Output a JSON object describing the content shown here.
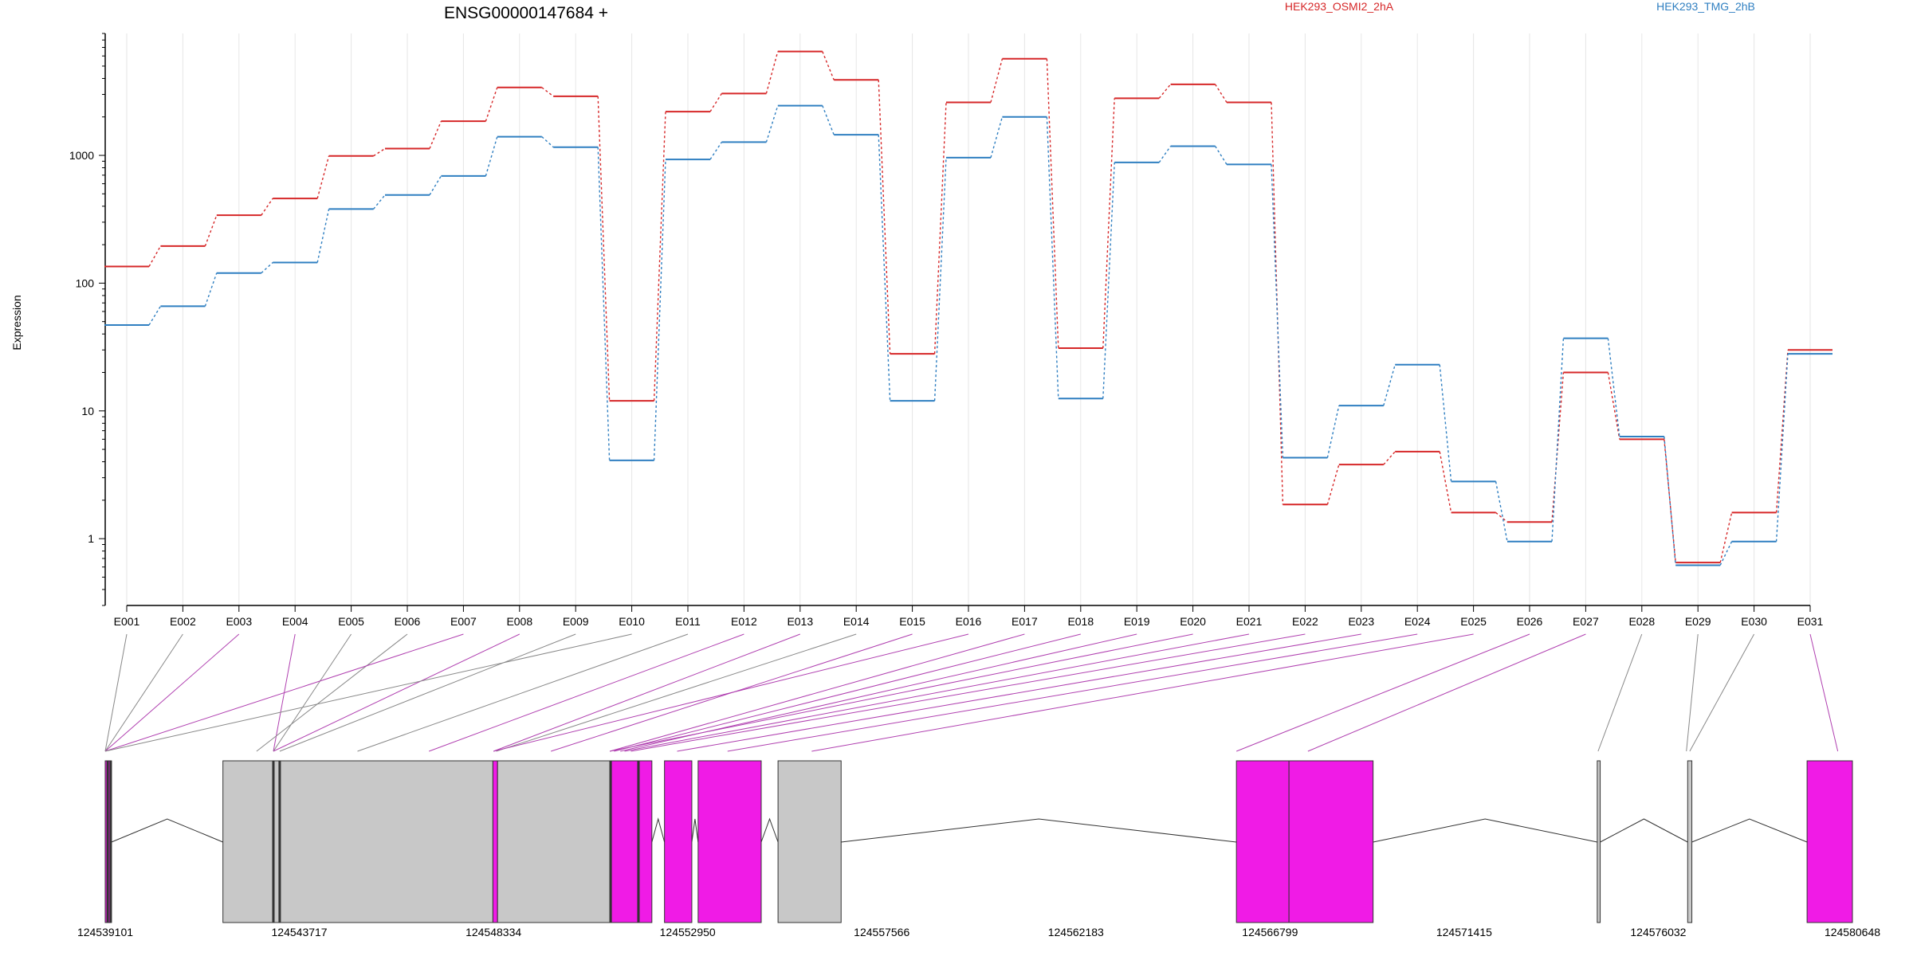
{
  "chart_data": {
    "type": "line",
    "title": "ENSG00000147684 +",
    "ylabel": "Expression",
    "yscale": "log",
    "ylim": [
      0.3,
      9000
    ],
    "y_ticks": [
      1,
      10,
      100,
      1000
    ],
    "y_tick_labels": [
      "1",
      "10",
      "100",
      "1000"
    ],
    "grid": "vertical",
    "categories": [
      "E001",
      "E002",
      "E003",
      "E004",
      "E005",
      "E006",
      "E007",
      "E008",
      "E009",
      "E010",
      "E011",
      "E012",
      "E013",
      "E014",
      "E015",
      "E016",
      "E017",
      "E018",
      "E019",
      "E020",
      "E021",
      "E022",
      "E023",
      "E024",
      "E025",
      "E026",
      "E027",
      "E028",
      "E029",
      "E030",
      "E031"
    ],
    "series": [
      {
        "name": "HEK293_OSMI2_2hA",
        "color": "#d62728",
        "values": [
          135,
          195,
          340,
          460,
          990,
          1130,
          1850,
          3400,
          2900,
          12,
          2200,
          3050,
          6500,
          3900,
          28,
          2600,
          5700,
          31,
          2800,
          3600,
          2600,
          1.85,
          3.8,
          4.8,
          1.6,
          1.35,
          20,
          6,
          0.65,
          1.6,
          30
        ]
      },
      {
        "name": "HEK293_TMG_2hB",
        "color": "#2f7fc1",
        "values": [
          47,
          66,
          120,
          145,
          380,
          490,
          690,
          1400,
          1160,
          4.1,
          930,
          1270,
          2450,
          1450,
          12,
          960,
          2000,
          12.5,
          880,
          1180,
          850,
          4.3,
          11,
          23,
          2.8,
          0.95,
          37,
          6.3,
          0.62,
          0.95,
          28
        ]
      }
    ],
    "genome_axis": {
      "tick_labels": [
        "124539101",
        "124543717",
        "124548334",
        "124552950",
        "124557566",
        "124562183",
        "124566799",
        "124571415",
        "124576032",
        "124580648"
      ],
      "range": [
        124539101,
        124580648
      ]
    },
    "exon_model": {
      "blocks": [
        {
          "start": 124539101,
          "end": 124539250,
          "kind": "highlight"
        },
        {
          "start": 124541900,
          "end": 124548320,
          "kind": "plain"
        },
        {
          "start": 124548320,
          "end": 124548430,
          "kind": "highlight"
        },
        {
          "start": 124548430,
          "end": 124551100,
          "kind": "plain"
        },
        {
          "start": 124551100,
          "end": 124551800,
          "kind": "highlight"
        },
        {
          "start": 124551800,
          "end": 124552100,
          "kind": "highlight"
        },
        {
          "start": 124552400,
          "end": 124553050,
          "kind": "highlight"
        },
        {
          "start": 124553200,
          "end": 124554700,
          "kind": "highlight"
        },
        {
          "start": 124555100,
          "end": 124556600,
          "kind": "plain"
        },
        {
          "start": 124566000,
          "end": 124567250,
          "kind": "highlight"
        },
        {
          "start": 124567250,
          "end": 124569250,
          "kind": "highlight"
        },
        {
          "start": 124574580,
          "end": 124574650,
          "kind": "plain"
        },
        {
          "start": 124576730,
          "end": 124576830,
          "kind": "plain"
        },
        {
          "start": 124579570,
          "end": 124580648,
          "kind": "highlight"
        }
      ],
      "marks": [
        124539160,
        124539230,
        124543100,
        124543250,
        124551120,
        124551780
      ],
      "introns": [
        [
          124539250,
          124541900
        ],
        [
          124552100,
          124552400
        ],
        [
          124553050,
          124553200
        ],
        [
          124554700,
          124555100
        ],
        [
          124556600,
          124566000
        ],
        [
          124569250,
          124574580
        ],
        [
          124574650,
          124576730
        ],
        [
          124576830,
          124579570
        ]
      ],
      "exon_anchor_coords": [
        124539101,
        124539101,
        124539101,
        124543100,
        124543100,
        124542700,
        124539101,
        124543100,
        124543250,
        124539101,
        124545100,
        124546800,
        124548334,
        124548400,
        124549700,
        124548334,
        124551100,
        124551200,
        124551350,
        124551100,
        124551450,
        124551600,
        124552700,
        124553900,
        124555900,
        124566000,
        124567700,
        124574600,
        124576700,
        124576780,
        124580300
      ],
      "highlight_links": [
        3,
        4,
        7,
        8,
        12,
        13,
        15,
        16,
        17,
        18,
        19,
        20,
        21,
        22,
        23,
        24,
        25,
        26,
        27,
        31
      ]
    },
    "colors": {
      "highlight_exon": "#f01be6",
      "plain_exon": "#c8c8c8",
      "highlight_link": "#b040b0",
      "plain_link": "#888888",
      "grid": "#e6e6e6"
    }
  }
}
